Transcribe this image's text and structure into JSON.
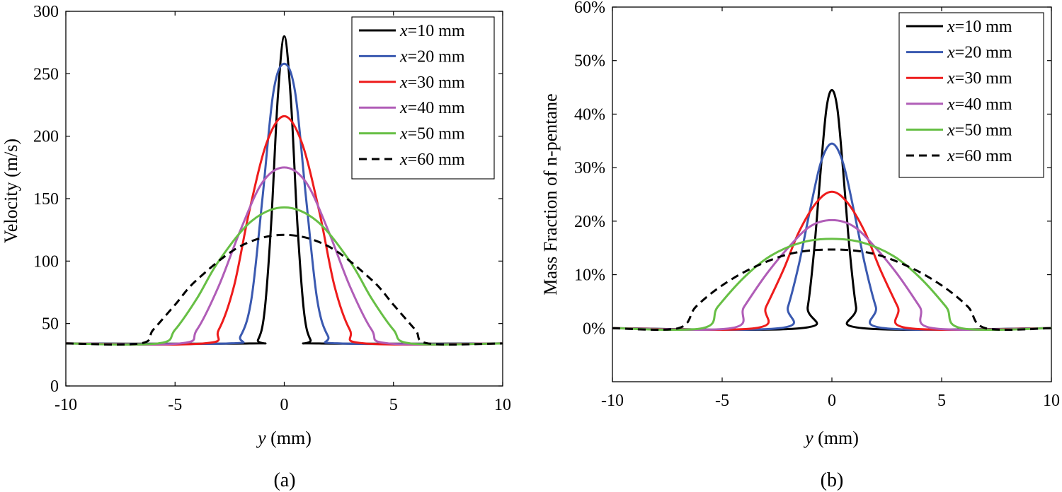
{
  "colors": {
    "x10": "#000000",
    "x20": "#3a59b0",
    "x30": "#ee1c1c",
    "x40": "#b05db7",
    "x50": "#67bf45",
    "x60": "#000000"
  },
  "chart_data": [
    {
      "type": "line",
      "panel_label": "(a)",
      "xlabel_var": "y",
      "xlabel_unit": " (mm)",
      "ylabel": "Velocity (m/s)",
      "xlim": [
        -10,
        10
      ],
      "ylim": [
        0,
        300
      ],
      "xticks": [
        -10,
        -5,
        0,
        5,
        10
      ],
      "xtick_labels": [
        "-10",
        "-5",
        "0",
        "5",
        "10"
      ],
      "yticks": [
        0,
        50,
        100,
        150,
        200,
        250,
        300
      ],
      "ytick_labels": [
        "0",
        "50",
        "100",
        "150",
        "200",
        "250",
        "300"
      ],
      "legend_position": "top-right",
      "series": [
        {
          "var": "x",
          "rest": "=10 mm",
          "color_key": "x10",
          "dashed": false,
          "x": [
            -10,
            -1.6,
            -1.2,
            -0.9,
            -0.6,
            -0.3,
            0,
            0.3,
            0.6,
            0.9,
            1.2,
            1.6,
            10
          ],
          "y": [
            34,
            34,
            37,
            60,
            130,
            230,
            280,
            230,
            130,
            60,
            37,
            34,
            34
          ]
        },
        {
          "var": "x",
          "rest": "=20 mm",
          "color_key": "x20",
          "dashed": false,
          "x": [
            -10,
            -2.6,
            -2.0,
            -1.5,
            -1.0,
            -0.5,
            0,
            0.5,
            1.0,
            1.5,
            2.0,
            2.6,
            10
          ],
          "y": [
            34,
            34,
            40,
            70,
            150,
            235,
            258,
            235,
            150,
            70,
            40,
            34,
            34
          ]
        },
        {
          "var": "x",
          "rest": "=30 mm",
          "color_key": "x30",
          "dashed": false,
          "x": [
            -10,
            -3.7,
            -3.0,
            -2.3,
            -1.6,
            -0.8,
            0,
            0.8,
            1.6,
            2.3,
            3.0,
            3.7,
            10
          ],
          "y": [
            34,
            34,
            45,
            80,
            140,
            195,
            216,
            195,
            140,
            80,
            45,
            34,
            34
          ]
        },
        {
          "var": "x",
          "rest": "=40 mm",
          "color_key": "x40",
          "dashed": false,
          "x": [
            -10,
            -4.8,
            -4.0,
            -3.0,
            -2.0,
            -1.0,
            0,
            1.0,
            2.0,
            3.0,
            4.0,
            4.8,
            10
          ],
          "y": [
            34,
            34,
            45,
            80,
            125,
            163,
            175,
            163,
            125,
            80,
            45,
            34,
            34
          ]
        },
        {
          "var": "x",
          "rest": "=50 mm",
          "color_key": "x50",
          "dashed": false,
          "x": [
            -10,
            -5.8,
            -5.0,
            -4.0,
            -3.0,
            -1.5,
            0,
            1.5,
            3.0,
            4.0,
            5.0,
            5.8,
            10
          ],
          "y": [
            34,
            34,
            45,
            70,
            100,
            132,
            143,
            132,
            100,
            70,
            45,
            34,
            34
          ]
        },
        {
          "var": "x",
          "rest": "=60 mm",
          "color_key": "x60",
          "dashed": true,
          "x": [
            -10,
            -6.6,
            -6.0,
            -5.0,
            -4.0,
            -2.0,
            0,
            2.0,
            4.0,
            5.0,
            6.0,
            6.6,
            10
          ],
          "y": [
            34,
            34,
            45,
            65,
            85,
            112,
            121,
            112,
            85,
            65,
            45,
            34,
            34
          ]
        }
      ]
    },
    {
      "type": "line",
      "panel_label": "(b)",
      "xlabel_var": "y",
      "xlabel_unit": " (mm)",
      "ylabel": "Mass Fraction of n-pentane",
      "xlim": [
        -10,
        10
      ],
      "ylim": [
        -10,
        60
      ],
      "xticks": [
        -10,
        -5,
        0,
        5,
        10
      ],
      "xtick_labels": [
        "-10",
        "-5",
        "0",
        "5",
        "10"
      ],
      "yticks": [
        0,
        10,
        20,
        30,
        40,
        50,
        60
      ],
      "ytick_labels": [
        "0%",
        "10%",
        "20%",
        "30%",
        "40%",
        "50%",
        "60%"
      ],
      "legend_position": "top-right",
      "series": [
        {
          "var": "x",
          "rest": "=10 mm",
          "color_key": "x10",
          "dashed": false,
          "x": [
            -10,
            -1.4,
            -1.1,
            -0.8,
            -0.5,
            -0.25,
            0,
            0.25,
            0.5,
            0.8,
            1.1,
            1.4,
            10
          ],
          "y": [
            0,
            0,
            4,
            15,
            30,
            41,
            44.5,
            41,
            30,
            15,
            4,
            0,
            0
          ]
        },
        {
          "var": "x",
          "rest": "=20 mm",
          "color_key": "x20",
          "dashed": false,
          "x": [
            -10,
            -2.4,
            -2.0,
            -1.5,
            -1.0,
            -0.5,
            0,
            0.5,
            1.0,
            1.5,
            2.0,
            2.4,
            10
          ],
          "y": [
            0,
            0,
            4,
            12,
            22,
            31,
            34.5,
            31,
            22,
            12,
            4,
            0,
            0
          ]
        },
        {
          "var": "x",
          "rest": "=30 mm",
          "color_key": "x30",
          "dashed": false,
          "x": [
            -10,
            -3.5,
            -3.0,
            -2.2,
            -1.5,
            -0.7,
            0,
            0.7,
            1.5,
            2.2,
            3.0,
            3.5,
            10
          ],
          "y": [
            0,
            0,
            4,
            11,
            18,
            23.5,
            25.5,
            23.5,
            18,
            11,
            4,
            0,
            0
          ]
        },
        {
          "var": "x",
          "rest": "=40 mm",
          "color_key": "x40",
          "dashed": false,
          "x": [
            -10,
            -4.6,
            -4.0,
            -3.0,
            -2.0,
            -1.0,
            0,
            1.0,
            2.0,
            3.0,
            4.0,
            4.6,
            10
          ],
          "y": [
            0,
            0,
            4,
            10,
            15,
            19,
            20.2,
            19,
            15,
            10,
            4,
            0,
            0
          ]
        },
        {
          "var": "x",
          "rest": "=50 mm",
          "color_key": "x50",
          "dashed": false,
          "x": [
            -10,
            -5.9,
            -5.2,
            -4.0,
            -2.8,
            -1.4,
            0,
            1.4,
            2.8,
            4.0,
            5.2,
            5.9,
            10
          ],
          "y": [
            0,
            0,
            4,
            9.5,
            13.5,
            16,
            16.7,
            16,
            13.5,
            9.5,
            4,
            0,
            0
          ]
        },
        {
          "var": "x",
          "rest": "=60 mm",
          "color_key": "x60",
          "dashed": true,
          "x": [
            -10,
            -7.0,
            -6.2,
            -5.0,
            -3.5,
            -1.8,
            0,
            1.8,
            3.5,
            5.0,
            6.2,
            7.0,
            10
          ],
          "y": [
            0,
            0,
            4,
            8,
            11.5,
            14,
            14.7,
            14,
            11.5,
            8,
            4,
            0,
            0
          ]
        }
      ]
    }
  ]
}
